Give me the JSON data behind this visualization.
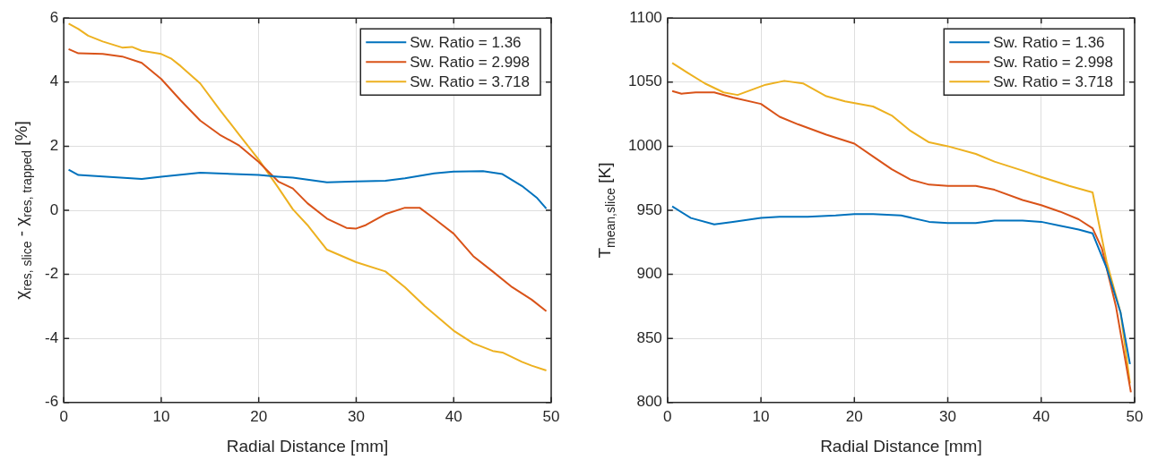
{
  "chart_data": [
    {
      "type": "line",
      "xlabel": "Radial Distance [mm]",
      "ylabel": "χ$_{res, slice}$ - χ$_{res, trapped}$ [%]",
      "xlim": [
        0,
        50
      ],
      "xticks": [
        0,
        10,
        20,
        30,
        40,
        50
      ],
      "ylim": [
        -6,
        6
      ],
      "yticks": [
        -6,
        -4,
        -2,
        0,
        2,
        4,
        6
      ],
      "grid": true,
      "legend": "top right",
      "series": [
        {
          "name": "Sw. Ratio = 1.36",
          "color": "#0072bd",
          "x": [
            0.5,
            1.5,
            8,
            10,
            14,
            20,
            22,
            23.5,
            27,
            30,
            33,
            35,
            38,
            40,
            43,
            45,
            47,
            48.5,
            49.5
          ],
          "values": [
            1.27,
            1.1,
            0.98,
            1.05,
            1.17,
            1.1,
            1.05,
            1.02,
            0.87,
            0.9,
            0.92,
            1.0,
            1.15,
            1.21,
            1.22,
            1.13,
            0.76,
            0.4,
            0.05
          ]
        },
        {
          "name": "Sw. Ratio = 2.998",
          "color": "#d95319",
          "x": [
            0.5,
            1.5,
            4,
            6,
            8,
            10,
            12,
            14,
            16,
            18,
            20,
            22,
            23.5,
            25,
            27,
            29,
            30,
            31,
            33,
            35,
            36.5,
            38,
            40,
            42,
            44,
            46,
            48,
            49.5
          ],
          "values": [
            5.03,
            4.9,
            4.88,
            4.8,
            4.6,
            4.1,
            3.43,
            2.8,
            2.36,
            2.02,
            1.51,
            0.9,
            0.68,
            0.22,
            -0.26,
            -0.55,
            -0.57,
            -0.46,
            -0.12,
            0.08,
            0.08,
            -0.26,
            -0.73,
            -1.43,
            -1.91,
            -2.4,
            -2.79,
            -3.15
          ]
        },
        {
          "name": "Sw. Ratio = 3.718",
          "color": "#edb120",
          "x": [
            0.5,
            1.5,
            2.5,
            4,
            6,
            7,
            8,
            10,
            11,
            12,
            14,
            16,
            18,
            20,
            22,
            23.5,
            25,
            27,
            30,
            33,
            35,
            37,
            40,
            42,
            44,
            45,
            47,
            48,
            49.5
          ],
          "values": [
            5.83,
            5.66,
            5.45,
            5.27,
            5.08,
            5.1,
            4.98,
            4.88,
            4.74,
            4.5,
            3.96,
            3.14,
            2.36,
            1.58,
            0.71,
            0.03,
            -0.46,
            -1.23,
            -1.62,
            -1.91,
            -2.4,
            -2.98,
            -3.76,
            -4.15,
            -4.39,
            -4.44,
            -4.73,
            -4.85,
            -5.0
          ]
        }
      ]
    },
    {
      "type": "line",
      "xlabel": "Radial Distance [mm]",
      "ylabel": "T$_{mean,slice}$ [K]",
      "xlim": [
        0,
        50
      ],
      "xticks": [
        0,
        10,
        20,
        30,
        40,
        50
      ],
      "ylim": [
        800,
        1100
      ],
      "yticks": [
        800,
        850,
        900,
        950,
        1000,
        1050,
        1100
      ],
      "grid": true,
      "legend": "top right",
      "series": [
        {
          "name": "Sw. Ratio = 1.36",
          "color": "#0072bd",
          "x": [
            0.5,
            2.5,
            5,
            7,
            10,
            12,
            15,
            18,
            20,
            22,
            25,
            28,
            30,
            33,
            35,
            38,
            40,
            42,
            44,
            45.5,
            47,
            48.5,
            49.5
          ],
          "values": [
            953,
            944,
            939,
            941,
            944,
            945,
            945,
            946,
            947,
            947,
            946,
            941,
            940,
            940,
            942,
            942,
            941,
            938,
            935,
            932,
            905,
            870,
            830
          ]
        },
        {
          "name": "Sw. Ratio = 2.998",
          "color": "#d95319",
          "x": [
            0.5,
            1.5,
            3,
            5,
            7,
            10,
            12,
            14,
            17,
            20,
            22,
            24,
            26,
            28,
            30,
            33,
            35,
            38,
            40,
            42,
            44,
            45.5,
            46.5,
            48,
            49.6
          ],
          "values": [
            1043,
            1041,
            1042,
            1042,
            1038,
            1033,
            1023,
            1017,
            1009,
            1002,
            992,
            982,
            974,
            970,
            969,
            969,
            966,
            958,
            954,
            949,
            943,
            936,
            920,
            875,
            808
          ]
        },
        {
          "name": "Sw. Ratio = 3.718",
          "color": "#edb120",
          "x": [
            0.5,
            2,
            4,
            6,
            7.5,
            9,
            10.5,
            12.5,
            14.5,
            17,
            19,
            22,
            24,
            26,
            28,
            30,
            33,
            35,
            38,
            40,
            43,
            45.5,
            47,
            48.5,
            49.5
          ],
          "values": [
            1065,
            1058,
            1049,
            1042,
            1040,
            1044,
            1048,
            1051,
            1049,
            1039,
            1035,
            1031,
            1024,
            1012,
            1003,
            1000,
            994,
            988,
            981,
            976,
            969,
            964,
            910,
            870,
            815
          ]
        }
      ]
    }
  ]
}
